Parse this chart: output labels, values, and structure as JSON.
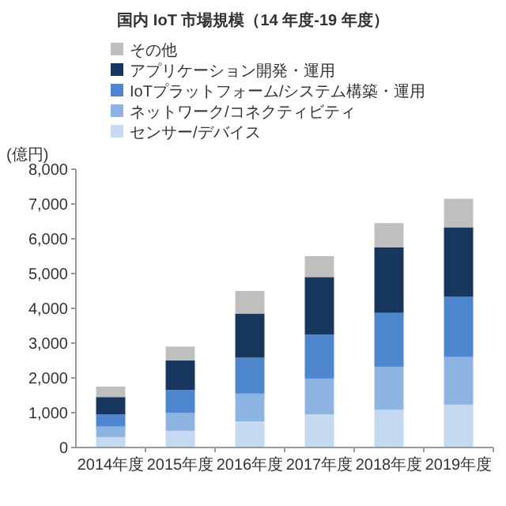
{
  "chart_data": {
    "type": "bar",
    "stacked": true,
    "title": "国内 IoT 市場規模（14 年度-19 年度）",
    "ylabel": "(億円)",
    "categories": [
      "2014年度",
      "2015年度",
      "2016年度",
      "2017年度",
      "2018年度",
      "2019年度"
    ],
    "series": [
      {
        "name": "センサー/デバイス",
        "color": "#c5d9f1",
        "values": [
          300,
          480,
          750,
          950,
          1080,
          1230
        ]
      },
      {
        "name": "ネットワーク/コネクティビティ",
        "color": "#8db3e2",
        "values": [
          300,
          520,
          800,
          1030,
          1240,
          1370
        ]
      },
      {
        "name": "IoTプラットフォーム/システム構築・運用",
        "color": "#4f86d0",
        "values": [
          350,
          650,
          1030,
          1270,
          1550,
          1730
        ]
      },
      {
        "name": "アプリケーション開発・運用",
        "color": "#17375e",
        "values": [
          500,
          850,
          1270,
          1650,
          1880,
          2000
        ]
      },
      {
        "name": "その他",
        "color": "#bfbfbf",
        "values": [
          300,
          400,
          650,
          600,
          700,
          820
        ]
      }
    ],
    "ylim": [
      0,
      8000
    ],
    "yticks": [
      {
        "value": 0,
        "label": "0"
      },
      {
        "value": 1000,
        "label": "1,000"
      },
      {
        "value": 2000,
        "label": "2,000"
      },
      {
        "value": 3000,
        "label": "3,000"
      },
      {
        "value": 4000,
        "label": "4,000"
      },
      {
        "value": 5000,
        "label": "5,000"
      },
      {
        "value": 6000,
        "label": "6,000"
      },
      {
        "value": 7000,
        "label": "7,000"
      },
      {
        "value": 8000,
        "label": "8,000"
      }
    ],
    "legend": "top"
  }
}
